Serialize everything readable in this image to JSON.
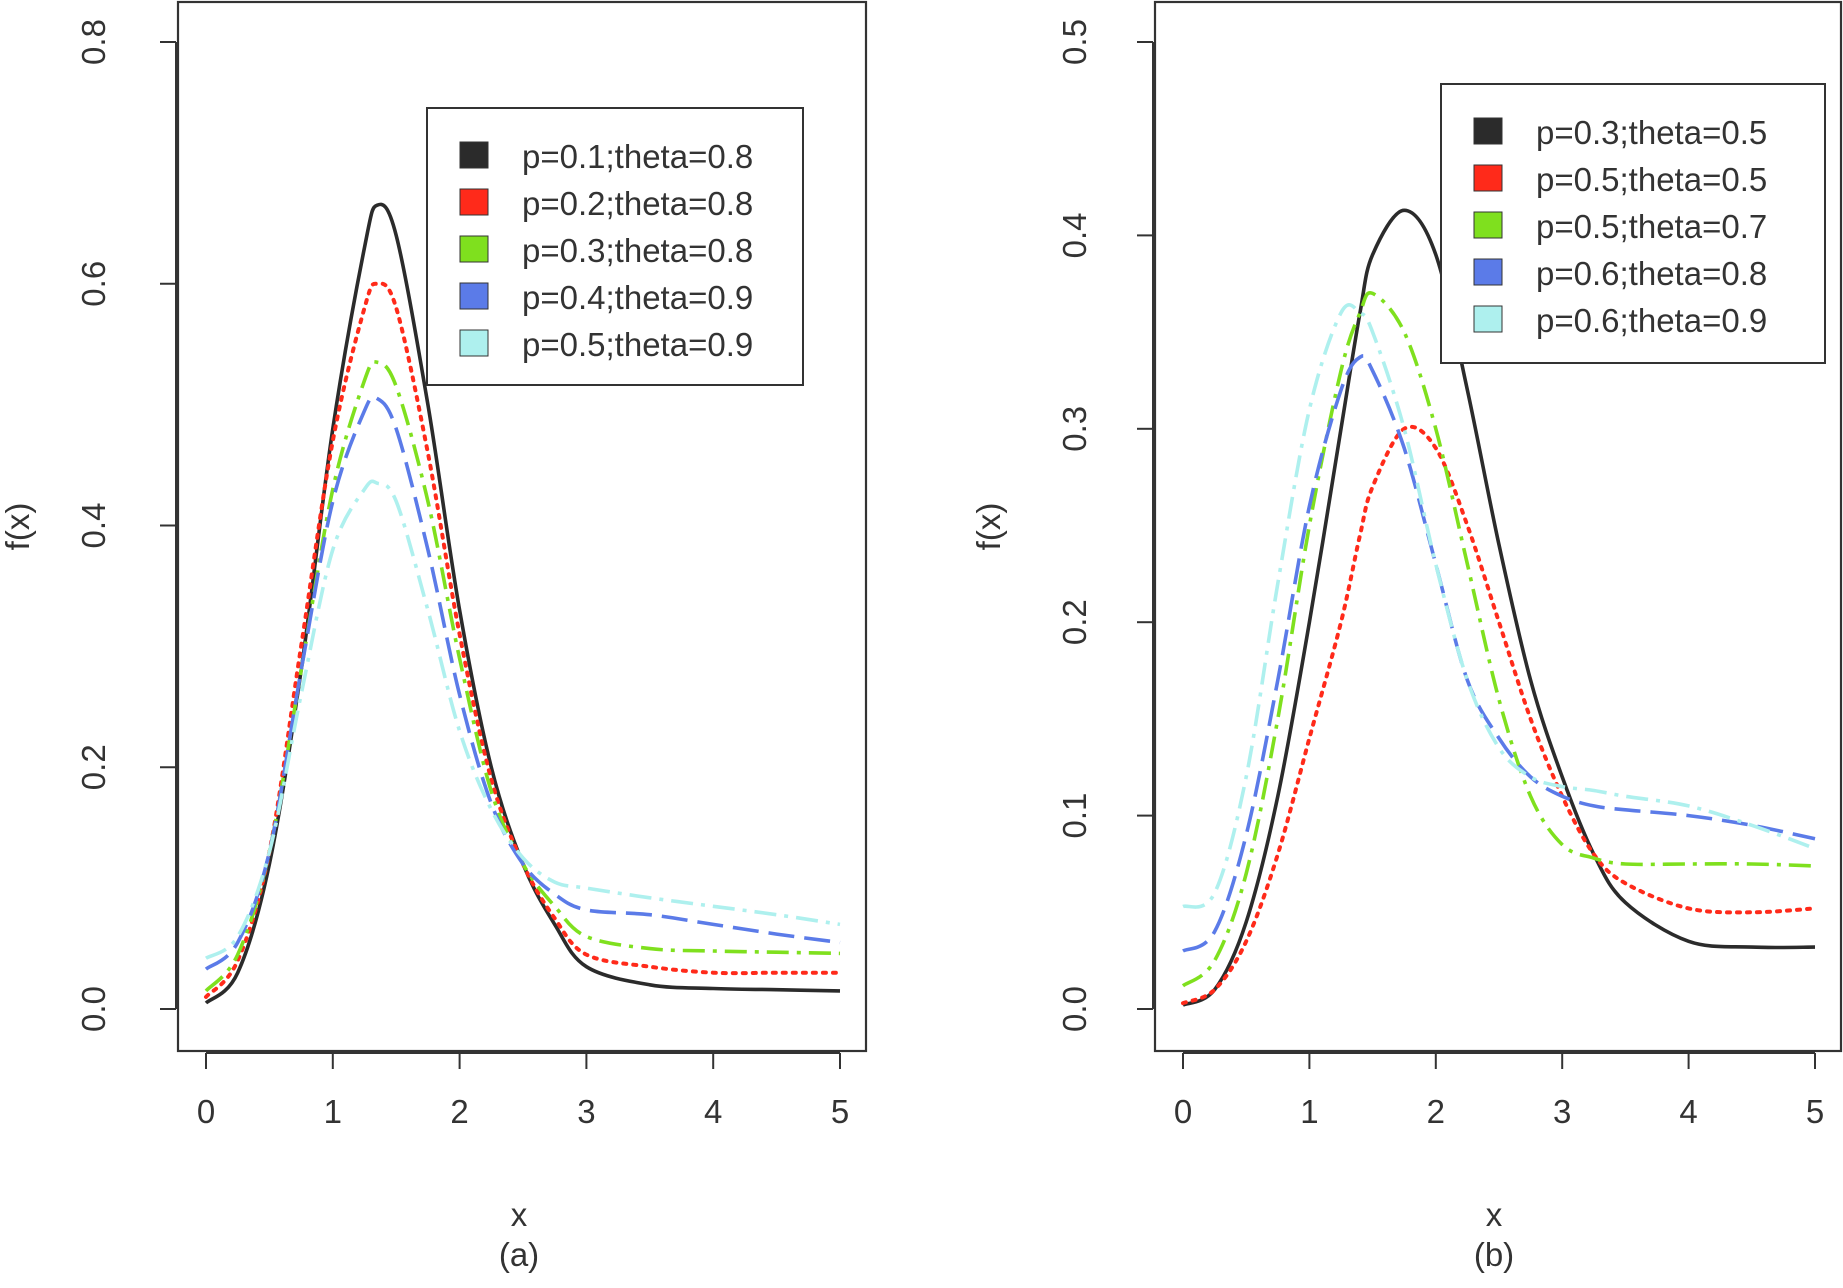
{
  "chart_data": [
    {
      "type": "line",
      "panel_label": "(a)",
      "xlabel": "x",
      "ylabel": "f(x)",
      "xlim": [
        0,
        5
      ],
      "ylim": [
        0,
        0.8
      ],
      "x_ticks": [
        0,
        1,
        2,
        3,
        4,
        5
      ],
      "x_tick_labels": [
        "0",
        "1",
        "2",
        "3",
        "4",
        "5"
      ],
      "y_ticks": [
        0.0,
        0.2,
        0.4,
        0.6,
        0.8
      ],
      "y_tick_labels": [
        "0.0",
        "0.2",
        "0.4",
        "0.6",
        "0.8"
      ],
      "legend_position": "top-right",
      "grid": false,
      "x": [
        0.0,
        0.25,
        0.5,
        0.75,
        1.0,
        1.25,
        1.35,
        1.5,
        1.75,
        2.0,
        2.25,
        2.5,
        2.75,
        3.0,
        3.5,
        4.0,
        4.5,
        5.0
      ],
      "series": [
        {
          "name": "p=0.1;theta=0.8",
          "color": "#2b2b2b",
          "dash": "solid",
          "values": [
            0.005,
            0.03,
            0.12,
            0.28,
            0.48,
            0.63,
            0.665,
            0.64,
            0.5,
            0.33,
            0.2,
            0.12,
            0.07,
            0.035,
            0.02,
            0.017,
            0.016,
            0.015
          ]
        },
        {
          "name": "p=0.2;theta=0.8",
          "color": "#ff2a1a",
          "dash": "dotted",
          "values": [
            0.01,
            0.04,
            0.13,
            0.3,
            0.47,
            0.58,
            0.6,
            0.58,
            0.46,
            0.31,
            0.19,
            0.12,
            0.075,
            0.045,
            0.035,
            0.03,
            0.03,
            0.03
          ]
        },
        {
          "name": "p=0.3;theta=0.8",
          "color": "#7fe01e",
          "dash": "dashdot",
          "values": [
            0.015,
            0.045,
            0.13,
            0.28,
            0.43,
            0.52,
            0.535,
            0.515,
            0.42,
            0.29,
            0.18,
            0.12,
            0.085,
            0.06,
            0.05,
            0.048,
            0.047,
            0.046
          ]
        },
        {
          "name": "p=0.4;theta=0.9",
          "color": "#5b7be8",
          "dash": "longdash",
          "values": [
            0.033,
            0.055,
            0.13,
            0.28,
            0.42,
            0.495,
            0.505,
            0.48,
            0.38,
            0.26,
            0.17,
            0.12,
            0.095,
            0.082,
            0.078,
            0.07,
            0.062,
            0.055
          ]
        },
        {
          "name": "p=0.5;theta=0.9",
          "color": "#aef0ee",
          "dash": "dashdot",
          "values": [
            0.042,
            0.06,
            0.13,
            0.26,
            0.38,
            0.43,
            0.435,
            0.42,
            0.33,
            0.23,
            0.165,
            0.125,
            0.105,
            0.1,
            0.092,
            0.085,
            0.078,
            0.07
          ]
        }
      ]
    },
    {
      "type": "line",
      "panel_label": "(b)",
      "xlabel": "x",
      "ylabel": "f(x)",
      "xlim": [
        0,
        5
      ],
      "ylim": [
        0,
        0.5
      ],
      "x_ticks": [
        0,
        1,
        2,
        3,
        4,
        5
      ],
      "x_tick_labels": [
        "0",
        "1",
        "2",
        "3",
        "4",
        "5"
      ],
      "y_ticks": [
        0.0,
        0.1,
        0.2,
        0.3,
        0.4,
        0.5
      ],
      "y_tick_labels": [
        "0.0",
        "0.1",
        "0.2",
        "0.3",
        "0.4",
        "0.5"
      ],
      "legend_position": "top-right",
      "grid": false,
      "x": [
        0.0,
        0.25,
        0.5,
        0.75,
        1.0,
        1.25,
        1.4,
        1.5,
        1.75,
        2.0,
        2.25,
        2.5,
        2.75,
        3.0,
        3.25,
        3.5,
        4.0,
        4.5,
        5.0
      ],
      "series": [
        {
          "name": "p=0.3;theta=0.5",
          "color": "#2b2b2b",
          "dash": "solid",
          "values": [
            0.002,
            0.01,
            0.045,
            0.11,
            0.2,
            0.3,
            0.36,
            0.39,
            0.413,
            0.39,
            0.32,
            0.24,
            0.17,
            0.12,
            0.08,
            0.055,
            0.035,
            0.032,
            0.032
          ]
        },
        {
          "name": "p=0.5;theta=0.5",
          "color": "#ff2a1a",
          "dash": "dotted",
          "values": [
            0.003,
            0.01,
            0.035,
            0.08,
            0.14,
            0.2,
            0.245,
            0.27,
            0.3,
            0.29,
            0.25,
            0.2,
            0.15,
            0.11,
            0.08,
            0.065,
            0.052,
            0.05,
            0.052
          ]
        },
        {
          "name": "p=0.5;theta=0.7",
          "color": "#7fe01e",
          "dash": "dashdot",
          "values": [
            0.012,
            0.025,
            0.07,
            0.15,
            0.25,
            0.33,
            0.36,
            0.37,
            0.35,
            0.3,
            0.23,
            0.16,
            0.11,
            0.085,
            0.078,
            0.075,
            0.075,
            0.075,
            0.074
          ]
        },
        {
          "name": "p=0.6;theta=0.8",
          "color": "#5b7be8",
          "dash": "longdash",
          "values": [
            0.03,
            0.04,
            0.09,
            0.17,
            0.26,
            0.32,
            0.337,
            0.33,
            0.29,
            0.23,
            0.17,
            0.14,
            0.12,
            0.11,
            0.105,
            0.103,
            0.1,
            0.095,
            0.088
          ]
        },
        {
          "name": "p=0.6;theta=0.9",
          "color": "#aef0ee",
          "dash": "dashdot",
          "values": [
            0.053,
            0.06,
            0.12,
            0.22,
            0.31,
            0.36,
            0.36,
            0.35,
            0.3,
            0.23,
            0.17,
            0.135,
            0.12,
            0.115,
            0.113,
            0.11,
            0.105,
            0.095,
            0.083
          ]
        }
      ]
    }
  ]
}
